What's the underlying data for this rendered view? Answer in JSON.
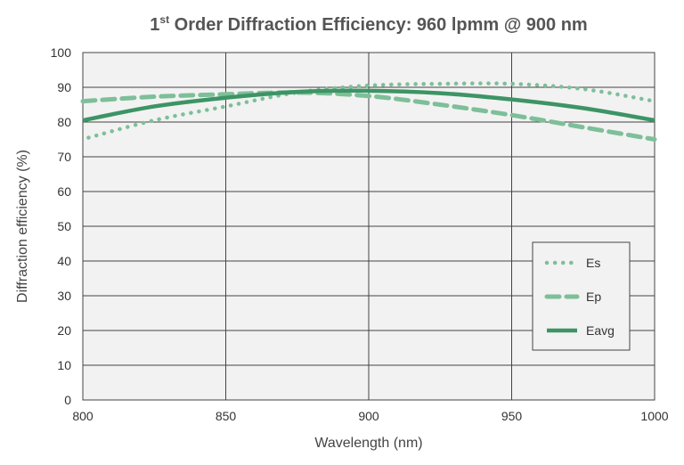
{
  "chart_data": {
    "type": "line",
    "title_main": "1",
    "title_sup": "st",
    "title_rest": " Order Diffraction Efficiency: 960 lpmm @ 900 nm",
    "xlabel": "Wavelength (nm)",
    "ylabel": "Diffraction efficiency (%)",
    "xlim": [
      800,
      1000
    ],
    "ylim": [
      0,
      100
    ],
    "xticks": [
      800,
      850,
      900,
      950,
      1000
    ],
    "yticks": [
      0,
      10,
      20,
      30,
      40,
      50,
      60,
      70,
      80,
      90,
      100
    ],
    "grid": true,
    "legend_position": "lower-right",
    "series": [
      {
        "name": "Es",
        "style": "dotted",
        "color": "#7dbf99",
        "x": [
          802,
          825,
          850,
          875,
          900,
          925,
          950,
          975,
          1000
        ],
        "y": [
          75.5,
          80.5,
          84.5,
          88.5,
          90.5,
          91,
          91,
          89.5,
          86
        ]
      },
      {
        "name": "Ep",
        "style": "dashed",
        "color": "#7dbf99",
        "x": [
          800,
          825,
          850,
          875,
          900,
          925,
          950,
          975,
          1000
        ],
        "y": [
          86,
          87.3,
          88,
          88.5,
          87.5,
          85,
          82,
          78.5,
          75
        ]
      },
      {
        "name": "Eavg",
        "style": "solid",
        "color": "#3d9465",
        "x": [
          800,
          825,
          850,
          875,
          900,
          925,
          950,
          975,
          1000
        ],
        "y": [
          80.5,
          84.5,
          87,
          88.7,
          89,
          88.3,
          86.5,
          84,
          80.5
        ]
      }
    ]
  }
}
